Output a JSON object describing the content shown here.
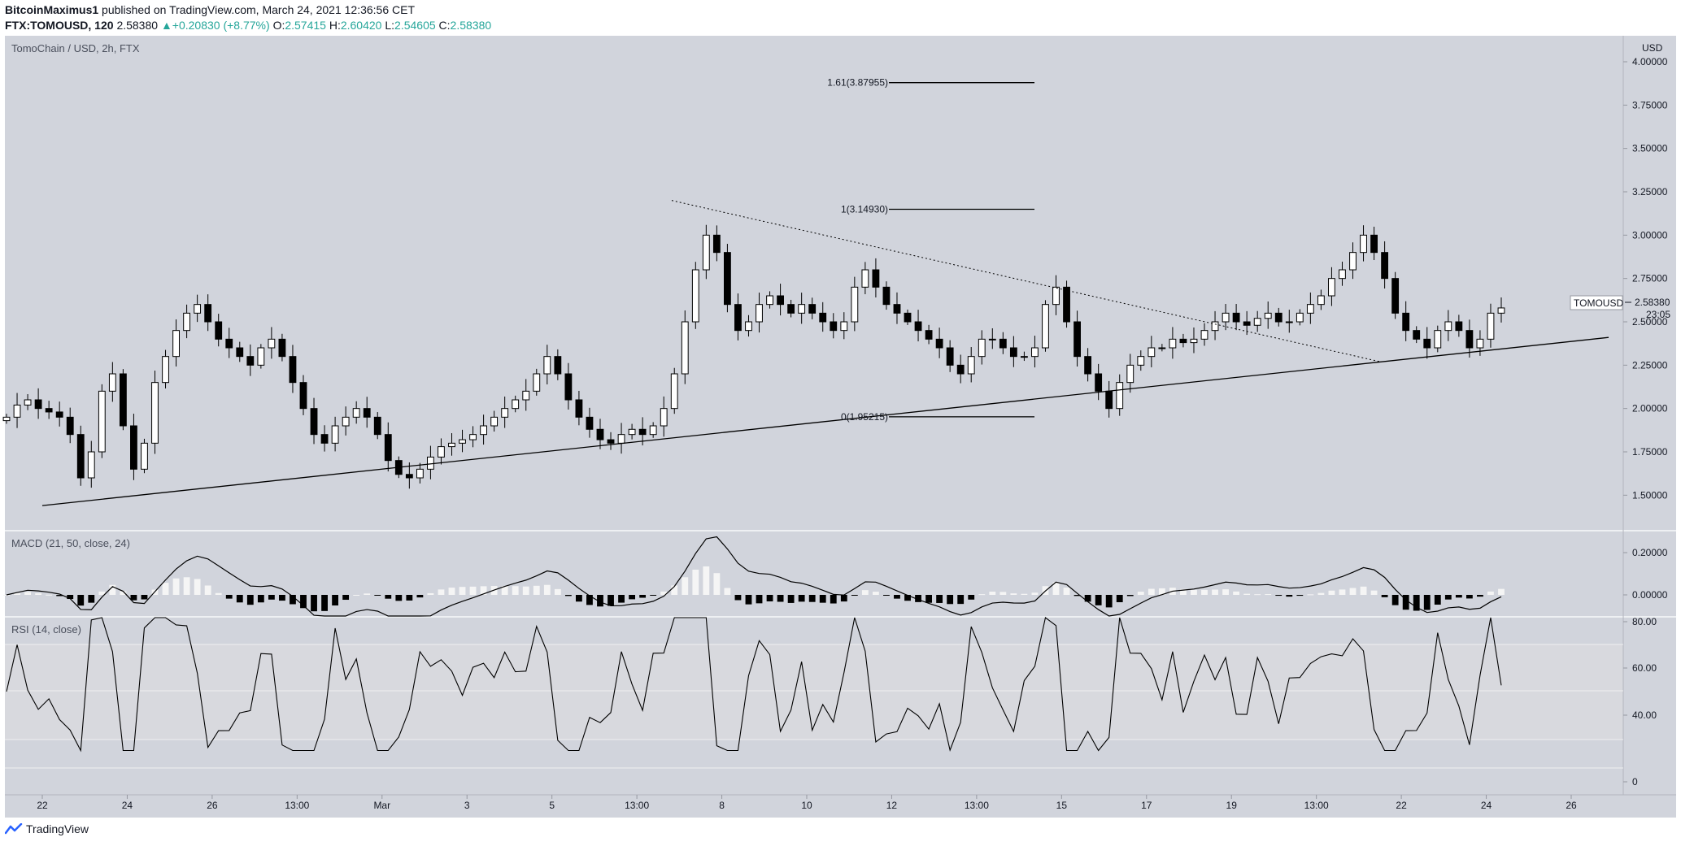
{
  "header": {
    "author": "BitcoinMaximus1",
    "published": " published on TradingView.com, March 24, 2021 12:36:56 CET",
    "symbol": "FTX:TOMOUSD, 120",
    "last": "2.58380",
    "change": "+0.20830 (+8.77%)",
    "open_label": "O:",
    "open": "2.57415",
    "high_label": "H:",
    "high": "2.60420",
    "low_label": "L:",
    "low": "2.54605",
    "close_label": "C:",
    "close": "2.58380"
  },
  "footer": {
    "brand": "TradingView",
    "brand_icon": "tradingview-logo-icon"
  },
  "colors": {
    "pane_bg": "#d1d4dc",
    "rsi_band": "#d8d9de",
    "line": "#000000",
    "positive": "#26a69a",
    "hist_pos": "#f5f5f5"
  },
  "chart_data": [
    {
      "type": "candlestick",
      "title": "TomoChain / USD, 2h, FTX",
      "y_unit": "USD",
      "ylim": [
        1.3,
        4.15
      ],
      "y_ticks": [
        "1.50000",
        "1.75000",
        "2.00000",
        "2.25000",
        "2.50000",
        "2.75000",
        "3.00000",
        "3.25000",
        "3.50000",
        "3.75000",
        "4.00000"
      ],
      "x_ticks": [
        "22",
        "24",
        "26",
        "13:00",
        "Mar",
        "3",
        "5",
        "13:00",
        "8",
        "10",
        "12",
        "13:00",
        "15",
        "17",
        "19",
        "13:00",
        "22",
        "24",
        "26"
      ],
      "last_price_label": {
        "symbol": "TOMOUSD",
        "price": "2.58380",
        "countdown": "23:05"
      },
      "fib_levels": [
        {
          "label": "1.61(3.87955)",
          "ratio": 1.61,
          "value": 3.87955
        },
        {
          "label": "1(3.14930)",
          "ratio": 1,
          "value": 3.1493
        },
        {
          "label": "0(1.95215)",
          "ratio": 0,
          "value": 1.95215
        }
      ],
      "ascending_support_line": {
        "from": [
          "Feb 22",
          1.44
        ],
        "to": [
          "Mar 26",
          2.41
        ]
      },
      "descending_resistance_line": {
        "style": "dotted",
        "from": [
          "Mar 7",
          3.2
        ],
        "to": [
          "Mar 21",
          2.27
        ]
      },
      "close_series": [
        1.95,
        2.02,
        2.05,
        2.0,
        1.98,
        1.95,
        1.85,
        1.6,
        1.75,
        2.1,
        2.2,
        1.9,
        1.65,
        1.8,
        2.15,
        2.3,
        2.45,
        2.55,
        2.6,
        2.5,
        2.4,
        2.35,
        2.3,
        2.25,
        2.35,
        2.4,
        2.3,
        2.15,
        2.0,
        1.85,
        1.8,
        1.9,
        1.95,
        2.0,
        1.95,
        1.85,
        1.7,
        1.62,
        1.6,
        1.65,
        1.72,
        1.78,
        1.8,
        1.82,
        1.85,
        1.9,
        1.95,
        2.0,
        2.05,
        2.1,
        2.2,
        2.3,
        2.2,
        2.05,
        1.95,
        1.88,
        1.82,
        1.8,
        1.85,
        1.88,
        1.85,
        1.9,
        2.0,
        2.2,
        2.5,
        2.8,
        3.0,
        2.9,
        2.6,
        2.45,
        2.5,
        2.6,
        2.65,
        2.6,
        2.55,
        2.6,
        2.55,
        2.5,
        2.45,
        2.5,
        2.7,
        2.8,
        2.7,
        2.6,
        2.55,
        2.5,
        2.45,
        2.4,
        2.35,
        2.25,
        2.2,
        2.3,
        2.4,
        2.4,
        2.35,
        2.3,
        2.3,
        2.35,
        2.6,
        2.7,
        2.5,
        2.3,
        2.2,
        2.1,
        2.0,
        2.15,
        2.25,
        2.3,
        2.35,
        2.35,
        2.4,
        2.38,
        2.4,
        2.45,
        2.5,
        2.55,
        2.5,
        2.48,
        2.52,
        2.55,
        2.5,
        2.5,
        2.55,
        2.6,
        2.65,
        2.75,
        2.8,
        2.9,
        3.0,
        2.9,
        2.75,
        2.55,
        2.45,
        2.4,
        2.35,
        2.45,
        2.5,
        2.45,
        2.35,
        2.4,
        2.55,
        2.58
      ]
    },
    {
      "type": "line",
      "title": "MACD (21, 50, close, 24)",
      "ylim": [
        -0.1,
        0.3
      ],
      "y_ticks": [
        "0.20000",
        "0.00000"
      ],
      "series": [
        {
          "name": "MACD"
        },
        {
          "name": "histogram"
        }
      ]
    },
    {
      "type": "line",
      "title": "RSI (14, close)",
      "ylim": [
        0,
        80
      ],
      "y_ticks": [
        "80.00",
        "60.00",
        "40.00",
        "0"
      ],
      "levels": [
        70,
        50,
        30
      ],
      "series": [
        {
          "name": "RSI"
        }
      ]
    }
  ]
}
